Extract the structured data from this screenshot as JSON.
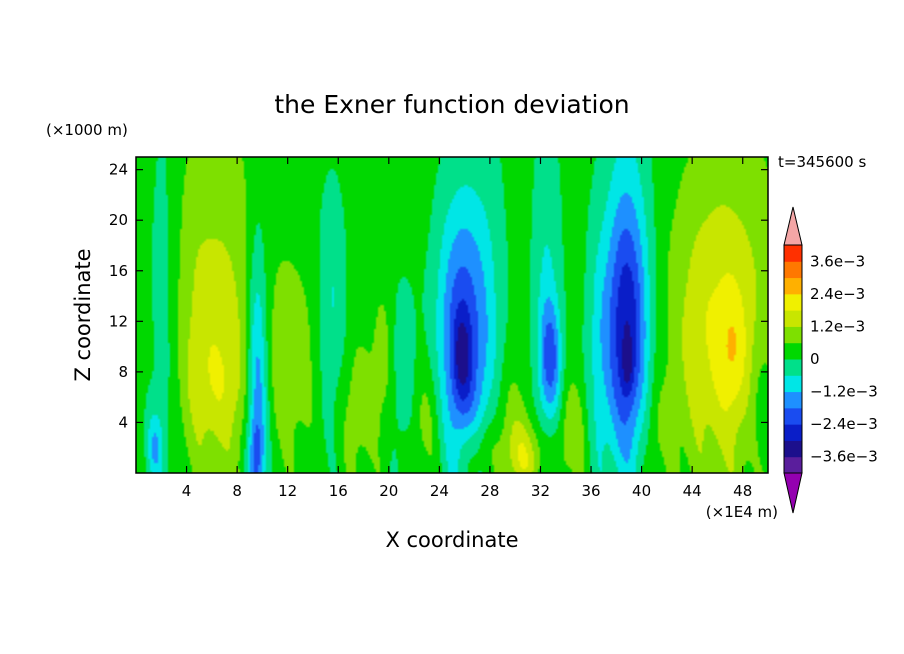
{
  "chart_data": {
    "type": "heatmap",
    "title": "the Exner function deviation",
    "xlabel": "X coordinate",
    "ylabel": "Z coordinate",
    "x_unit": "(×1E4 m)",
    "y_unit": "(×1000 m)",
    "time_label": "t=345600 s",
    "xlim": [
      0,
      50
    ],
    "ylim": [
      0,
      25
    ],
    "x_ticks": [
      4,
      8,
      12,
      16,
      20,
      24,
      28,
      32,
      36,
      40,
      44,
      48
    ],
    "y_ticks": [
      4,
      8,
      12,
      16,
      20,
      24
    ],
    "colorbar": {
      "levels": [
        -0.0042,
        -0.0036,
        -0.003,
        -0.0024,
        -0.0018,
        -0.0012,
        -0.0006,
        0,
        0.0006,
        0.0012,
        0.0018,
        0.0024,
        0.003,
        0.0036,
        0.0042
      ],
      "colors": [
        "#9400b0",
        "#5a1e9c",
        "#1c0f8c",
        "#0a1ec8",
        "#1a4cf0",
        "#1e90ff",
        "#00e6e6",
        "#00e08a",
        "#00d800",
        "#7ee000",
        "#c8e600",
        "#f0f000",
        "#ffb000",
        "#ff7800",
        "#ff3000",
        "#f4a6a6"
      ],
      "labels": [
        {
          "value": 0.0036,
          "text": "3.6e−3"
        },
        {
          "value": 0.0024,
          "text": "2.4e−3"
        },
        {
          "value": 0.0012,
          "text": "1.2e−3"
        },
        {
          "value": 0,
          "text": "0"
        },
        {
          "value": -0.0012,
          "text": "−1.2e−3"
        },
        {
          "value": -0.0024,
          "text": "−2.4e−3"
        },
        {
          "value": -0.0036,
          "text": "−3.6e−3"
        }
      ]
    },
    "blobs": [
      {
        "x": 6.0,
        "z": 12.5,
        "sx": 3.0,
        "sz": 10.0,
        "amp": 0.00115
      },
      {
        "x": 6.5,
        "z": 7.0,
        "sx": 1.6,
        "sz": 3.5,
        "amp": 0.0006
      },
      {
        "x": 2.2,
        "z": 12.0,
        "sx": 1.0,
        "sz": 12.0,
        "amp": -0.0009
      },
      {
        "x": 1.5,
        "z": 2.0,
        "sx": 0.5,
        "sz": 2.0,
        "amp": -0.0012
      },
      {
        "x": 9.6,
        "z": 6.0,
        "sx": 0.6,
        "sz": 9.0,
        "amp": -0.0022
      },
      {
        "x": 9.5,
        "z": 1.5,
        "sx": 0.4,
        "sz": 2.0,
        "amp": -0.001
      },
      {
        "x": 12.5,
        "z": 9.0,
        "sx": 1.3,
        "sz": 5.0,
        "amp": 0.0007
      },
      {
        "x": 15.5,
        "z": 13.0,
        "sx": 0.8,
        "sz": 7.0,
        "amp": -0.0009
      },
      {
        "x": 17.5,
        "z": 5.0,
        "sx": 1.0,
        "sz": 4.0,
        "amp": 0.0007
      },
      {
        "x": 19.5,
        "z": 9.0,
        "sx": 0.6,
        "sz": 4.0,
        "amp": 0.0006
      },
      {
        "x": 21.2,
        "z": 8.0,
        "sx": 0.7,
        "sz": 5.0,
        "amp": -0.0008
      },
      {
        "x": 23.0,
        "z": 4.0,
        "sx": 1.0,
        "sz": 3.5,
        "amp": 0.0007
      },
      {
        "x": 25.8,
        "z": 10.5,
        "sx": 1.4,
        "sz": 8.0,
        "amp": -0.0026
      },
      {
        "x": 25.8,
        "z": 9.0,
        "sx": 0.5,
        "sz": 2.5,
        "amp": -0.0012
      },
      {
        "x": 28.0,
        "z": 12.0,
        "sx": 1.0,
        "sz": 12.0,
        "amp": -0.0005
      },
      {
        "x": 27.0,
        "z": 1.5,
        "sx": 1.0,
        "sz": 2.0,
        "amp": 0.0011
      },
      {
        "x": 30.8,
        "z": 1.2,
        "sx": 1.2,
        "sz": 2.0,
        "amp": 0.0014
      },
      {
        "x": 29.5,
        "z": 4.5,
        "sx": 1.0,
        "sz": 3.0,
        "amp": 0.0006
      },
      {
        "x": 32.8,
        "z": 9.0,
        "sx": 0.6,
        "sz": 3.2,
        "amp": -0.0018
      },
      {
        "x": 32.5,
        "z": 14.0,
        "sx": 0.8,
        "sz": 10.0,
        "amp": -0.0009
      },
      {
        "x": 34.5,
        "z": 3.0,
        "sx": 0.8,
        "sz": 3.0,
        "amp": 0.0009
      },
      {
        "x": 36.5,
        "z": 9.0,
        "sx": 0.7,
        "sz": 8.0,
        "amp": -0.0007
      },
      {
        "x": 38.8,
        "z": 11.0,
        "sx": 1.2,
        "sz": 7.0,
        "amp": -0.0024
      },
      {
        "x": 38.9,
        "z": 8.5,
        "sx": 0.3,
        "sz": 1.5,
        "amp": -0.0009
      },
      {
        "x": 38.8,
        "z": 16.0,
        "sx": 1.3,
        "sz": 12.0,
        "amp": -0.0009
      },
      {
        "x": 41.0,
        "z": 3.0,
        "sx": 0.7,
        "sz": 3.0,
        "amp": 0.0005
      },
      {
        "x": 44.5,
        "z": 11.0,
        "sx": 2.0,
        "sz": 8.0,
        "amp": 0.0007
      },
      {
        "x": 47.3,
        "z": 12.0,
        "sx": 2.6,
        "sz": 10.0,
        "amp": 0.0012
      },
      {
        "x": 47.2,
        "z": 9.5,
        "sx": 0.8,
        "sz": 3.5,
        "amp": 0.0008
      },
      {
        "x": 49.5,
        "z": 5.0,
        "sx": 0.8,
        "sz": 4.0,
        "amp": -0.0006
      }
    ],
    "grid": false,
    "legend_placement": "right"
  }
}
